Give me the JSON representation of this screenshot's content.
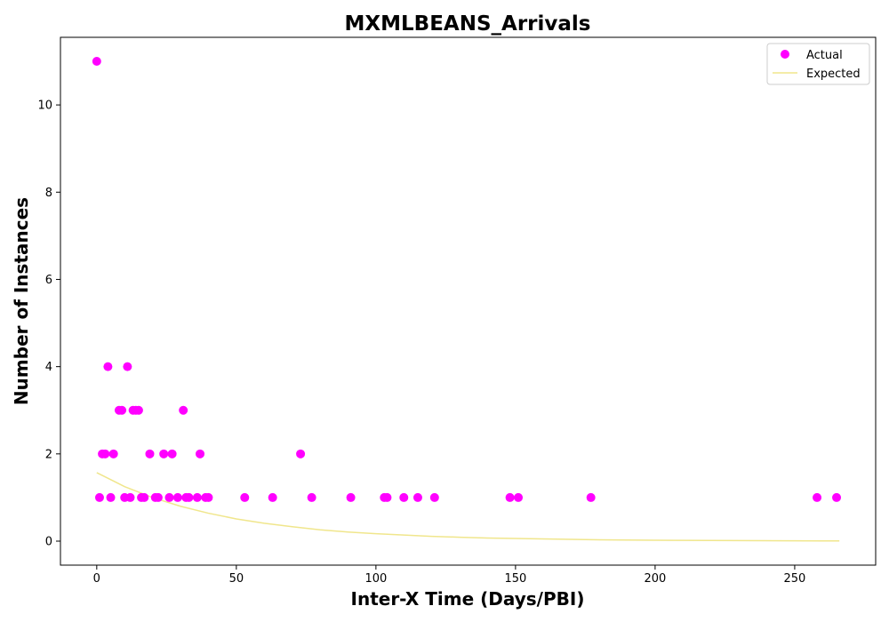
{
  "chart_data": {
    "type": "scatter",
    "title": "MXMLBEANS_Arrivals",
    "xlabel": "Inter-X Time (Days/PBI)",
    "ylabel": "Number of Instances",
    "xlim": [
      -13,
      279
    ],
    "ylim": [
      -0.55,
      11.55
    ],
    "x_ticks": [
      0,
      50,
      100,
      150,
      200,
      250
    ],
    "y_ticks": [
      0,
      2,
      4,
      6,
      8,
      10
    ],
    "grid": false,
    "legend_position": "top-right",
    "series": [
      {
        "name": "Actual",
        "kind": "scatter",
        "color": "#ff00ff",
        "points": [
          [
            0,
            11
          ],
          [
            1,
            1
          ],
          [
            2,
            2
          ],
          [
            3,
            2
          ],
          [
            4,
            4
          ],
          [
            5,
            1
          ],
          [
            6,
            2
          ],
          [
            8,
            3
          ],
          [
            9,
            3
          ],
          [
            10,
            1
          ],
          [
            11,
            4
          ],
          [
            12,
            1
          ],
          [
            13,
            3
          ],
          [
            14,
            3
          ],
          [
            15,
            3
          ],
          [
            16,
            1
          ],
          [
            17,
            1
          ],
          [
            19,
            2
          ],
          [
            21,
            1
          ],
          [
            22,
            1
          ],
          [
            24,
            2
          ],
          [
            26,
            1
          ],
          [
            27,
            2
          ],
          [
            29,
            1
          ],
          [
            31,
            3
          ],
          [
            32,
            1
          ],
          [
            33,
            1
          ],
          [
            36,
            1
          ],
          [
            37,
            2
          ],
          [
            39,
            1
          ],
          [
            40,
            1
          ],
          [
            53,
            1
          ],
          [
            63,
            1
          ],
          [
            73,
            2
          ],
          [
            77,
            1
          ],
          [
            91,
            1
          ],
          [
            103,
            1
          ],
          [
            104,
            1
          ],
          [
            110,
            1
          ],
          [
            115,
            1
          ],
          [
            121,
            1
          ],
          [
            148,
            1
          ],
          [
            151,
            1
          ],
          [
            177,
            1
          ],
          [
            258,
            1
          ],
          [
            265,
            1
          ]
        ]
      },
      {
        "name": "Expected",
        "kind": "line",
        "color": "#f0e68c",
        "points": [
          [
            0,
            1.57
          ],
          [
            10,
            1.25
          ],
          [
            20,
            1.0
          ],
          [
            30,
            0.8
          ],
          [
            40,
            0.64
          ],
          [
            50,
            0.51
          ],
          [
            60,
            0.41
          ],
          [
            70,
            0.33
          ],
          [
            80,
            0.26
          ],
          [
            90,
            0.21
          ],
          [
            100,
            0.17
          ],
          [
            110,
            0.14
          ],
          [
            120,
            0.11
          ],
          [
            130,
            0.09
          ],
          [
            140,
            0.07
          ],
          [
            150,
            0.06
          ],
          [
            160,
            0.05
          ],
          [
            170,
            0.04
          ],
          [
            180,
            0.03
          ],
          [
            190,
            0.025
          ],
          [
            200,
            0.02
          ],
          [
            210,
            0.018
          ],
          [
            220,
            0.015
          ],
          [
            230,
            0.012
          ],
          [
            240,
            0.01
          ],
          [
            250,
            0.008
          ],
          [
            260,
            0.005
          ],
          [
            266,
            0.004
          ]
        ]
      }
    ]
  }
}
